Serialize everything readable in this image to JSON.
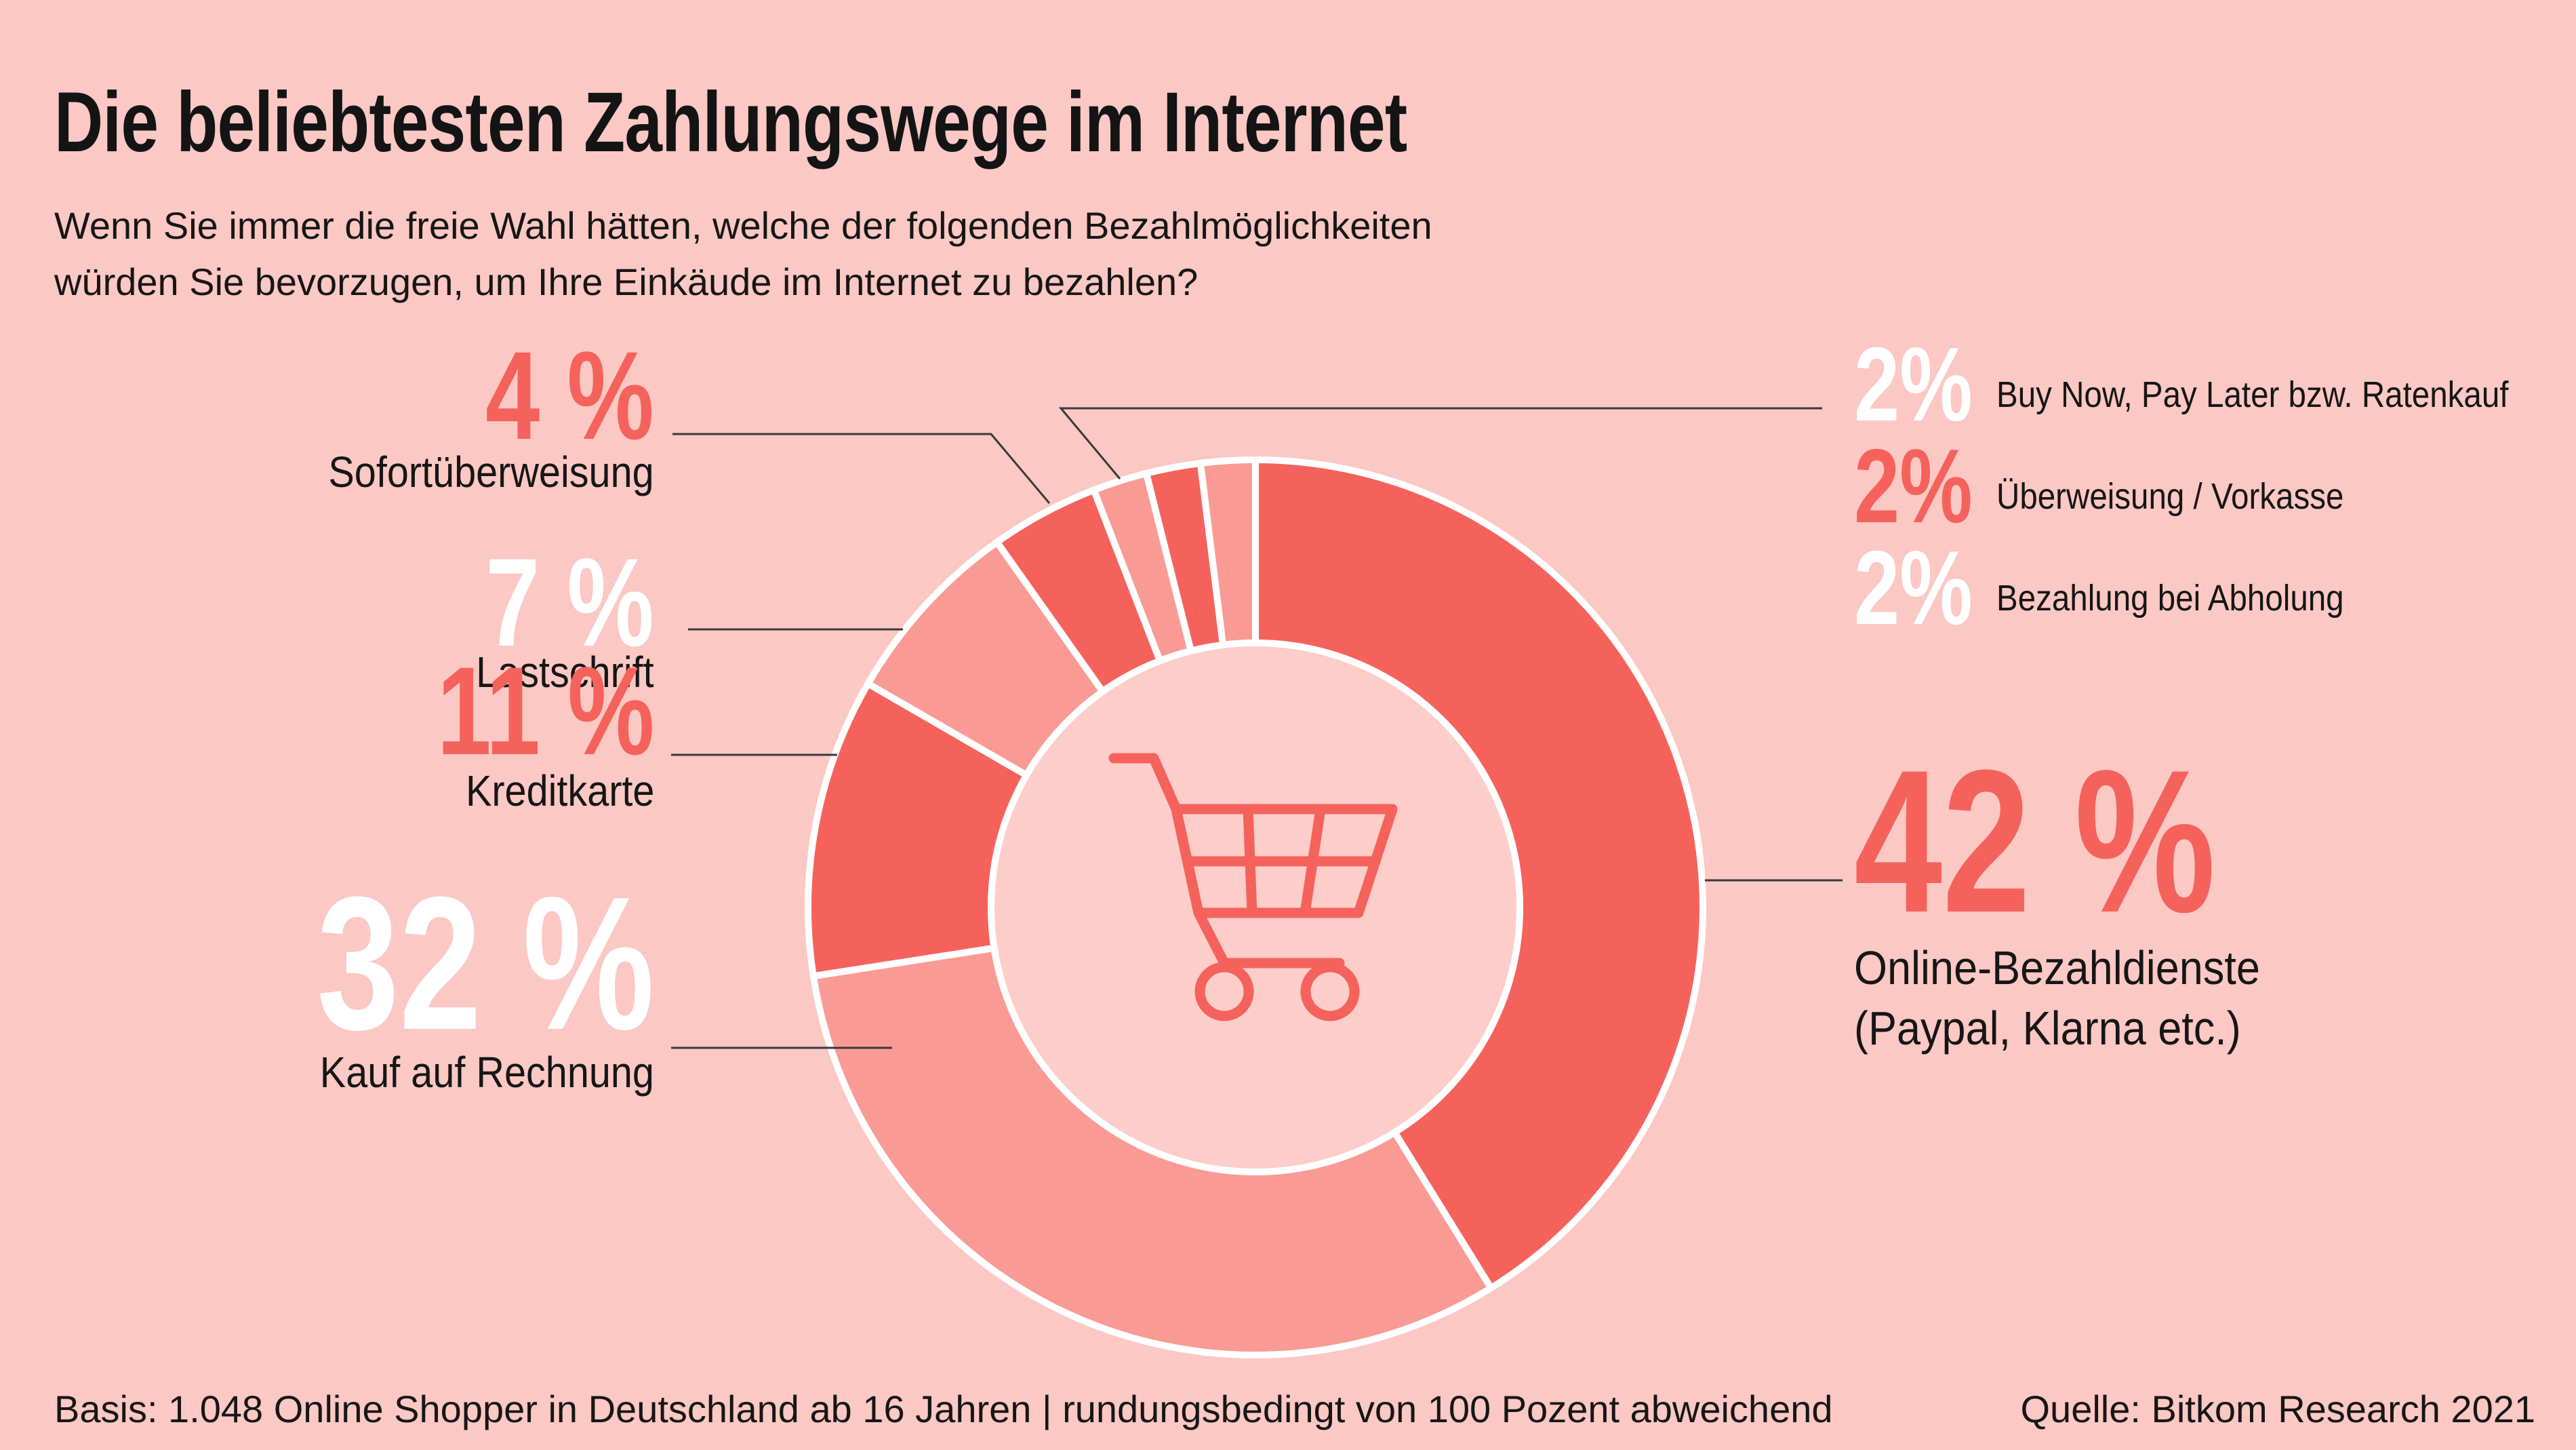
{
  "header": {
    "title": "Die beliebtesten Zahlungswege im Internet",
    "subtitle_line1": "Wenn Sie immer die freie Wahl hätten, welche der folgenden Bezahlmöglichkeiten",
    "subtitle_line2": "würden Sie bevorzugen, um Ihre Einkäude im Internet zu bezahlen?"
  },
  "chart_data": {
    "type": "pie",
    "subtype": "donut",
    "title": "Die beliebtesten Zahlungswege im Internet",
    "unit": "percent",
    "total_note": "rundungsbedingt von 100 Pozent abweichend",
    "center_icon": "shopping-cart-icon",
    "segments": [
      {
        "label": "Online-Bezahldienste (Paypal, Klarna etc.)",
        "value": 42,
        "tone": "dark"
      },
      {
        "label": "Kauf auf Rechnung",
        "value": 32,
        "tone": "light"
      },
      {
        "label": "Kreditkarte",
        "value": 11,
        "tone": "dark"
      },
      {
        "label": "Lastschrift",
        "value": 7,
        "tone": "light"
      },
      {
        "label": "Sofortüberweisung",
        "value": 4,
        "tone": "dark"
      },
      {
        "label": "Buy Now, Pay Later bzw. Ratenkauf",
        "value": 2,
        "tone": "light"
      },
      {
        "label": "Überweisung / Vorkasse",
        "value": 2,
        "tone": "dark"
      },
      {
        "label": "Bezahlung bei Abholung",
        "value": 2,
        "tone": "light"
      }
    ],
    "colors": {
      "dark": "#f5625c",
      "light": "#f99b94",
      "background": "#fbc8c4",
      "center": "#fdcdca",
      "divider": "#ffffff",
      "leader_line": "#3a3a3a"
    },
    "legend_position": "around",
    "start_angle_deg": 0,
    "direction": "clockwise"
  },
  "callouts": {
    "sofort": {
      "value": "4 %",
      "label": "Sofortüberweisung"
    },
    "lastschrift": {
      "value": "7 %",
      "label": "Lastschrift"
    },
    "kreditkarte": {
      "value": "11 %",
      "label": "Kreditkarte"
    },
    "rechnung": {
      "value": "32 %",
      "label": "Kauf auf Rechnung"
    },
    "bnpl": {
      "value": "2%",
      "label": "Buy Now, Pay Later bzw. Ratenkauf"
    },
    "vorkasse": {
      "value": "2%",
      "label": "Überweisung / Vorkasse"
    },
    "abholung": {
      "value": "2%",
      "label": "Bezahlung bei Abholung"
    },
    "online": {
      "value": "42 %",
      "label_line1": "Online-Bezahldienste",
      "label_line2": "(Paypal, Klarna etc.)"
    }
  },
  "footer": {
    "basis": "Basis: 1.048 Online Shopper in Deutschland ab 16 Jahren | rundungsbedingt von 100 Pozent abweichend",
    "source": "Quelle: Bitkom Research 2021"
  }
}
